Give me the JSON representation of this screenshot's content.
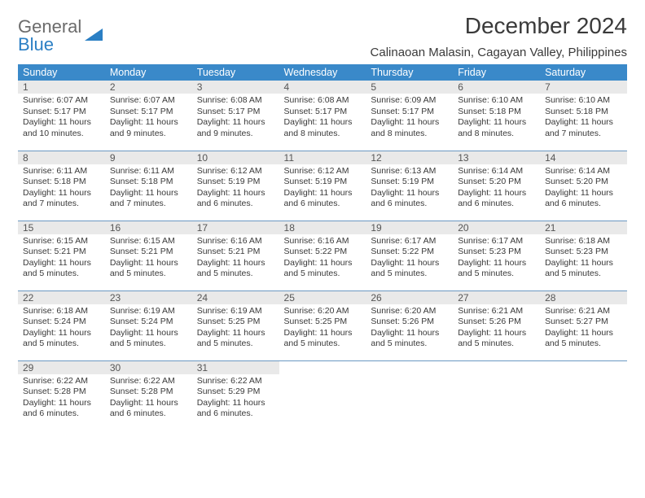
{
  "brand": {
    "line1": "General",
    "line2": "Blue"
  },
  "colors": {
    "header_bg": "#3a89c9",
    "header_fg": "#ffffff",
    "daynum_bg": "#e9e9e9",
    "row_divider": "#6a98c2",
    "text": "#393939",
    "logo_gray": "#6b6b6b",
    "logo_blue": "#2b7fc4"
  },
  "title": "December 2024",
  "location": "Calinaoan Malasin, Cagayan Valley, Philippines",
  "weekdays": [
    "Sunday",
    "Monday",
    "Tuesday",
    "Wednesday",
    "Thursday",
    "Friday",
    "Saturday"
  ],
  "days": [
    {
      "n": 1,
      "sr": "6:07 AM",
      "ss": "5:17 PM",
      "dl": "11 hours and 10 minutes."
    },
    {
      "n": 2,
      "sr": "6:07 AM",
      "ss": "5:17 PM",
      "dl": "11 hours and 9 minutes."
    },
    {
      "n": 3,
      "sr": "6:08 AM",
      "ss": "5:17 PM",
      "dl": "11 hours and 9 minutes."
    },
    {
      "n": 4,
      "sr": "6:08 AM",
      "ss": "5:17 PM",
      "dl": "11 hours and 8 minutes."
    },
    {
      "n": 5,
      "sr": "6:09 AM",
      "ss": "5:17 PM",
      "dl": "11 hours and 8 minutes."
    },
    {
      "n": 6,
      "sr": "6:10 AM",
      "ss": "5:18 PM",
      "dl": "11 hours and 8 minutes."
    },
    {
      "n": 7,
      "sr": "6:10 AM",
      "ss": "5:18 PM",
      "dl": "11 hours and 7 minutes."
    },
    {
      "n": 8,
      "sr": "6:11 AM",
      "ss": "5:18 PM",
      "dl": "11 hours and 7 minutes."
    },
    {
      "n": 9,
      "sr": "6:11 AM",
      "ss": "5:18 PM",
      "dl": "11 hours and 7 minutes."
    },
    {
      "n": 10,
      "sr": "6:12 AM",
      "ss": "5:19 PM",
      "dl": "11 hours and 6 minutes."
    },
    {
      "n": 11,
      "sr": "6:12 AM",
      "ss": "5:19 PM",
      "dl": "11 hours and 6 minutes."
    },
    {
      "n": 12,
      "sr": "6:13 AM",
      "ss": "5:19 PM",
      "dl": "11 hours and 6 minutes."
    },
    {
      "n": 13,
      "sr": "6:14 AM",
      "ss": "5:20 PM",
      "dl": "11 hours and 6 minutes."
    },
    {
      "n": 14,
      "sr": "6:14 AM",
      "ss": "5:20 PM",
      "dl": "11 hours and 6 minutes."
    },
    {
      "n": 15,
      "sr": "6:15 AM",
      "ss": "5:21 PM",
      "dl": "11 hours and 5 minutes."
    },
    {
      "n": 16,
      "sr": "6:15 AM",
      "ss": "5:21 PM",
      "dl": "11 hours and 5 minutes."
    },
    {
      "n": 17,
      "sr": "6:16 AM",
      "ss": "5:21 PM",
      "dl": "11 hours and 5 minutes."
    },
    {
      "n": 18,
      "sr": "6:16 AM",
      "ss": "5:22 PM",
      "dl": "11 hours and 5 minutes."
    },
    {
      "n": 19,
      "sr": "6:17 AM",
      "ss": "5:22 PM",
      "dl": "11 hours and 5 minutes."
    },
    {
      "n": 20,
      "sr": "6:17 AM",
      "ss": "5:23 PM",
      "dl": "11 hours and 5 minutes."
    },
    {
      "n": 21,
      "sr": "6:18 AM",
      "ss": "5:23 PM",
      "dl": "11 hours and 5 minutes."
    },
    {
      "n": 22,
      "sr": "6:18 AM",
      "ss": "5:24 PM",
      "dl": "11 hours and 5 minutes."
    },
    {
      "n": 23,
      "sr": "6:19 AM",
      "ss": "5:24 PM",
      "dl": "11 hours and 5 minutes."
    },
    {
      "n": 24,
      "sr": "6:19 AM",
      "ss": "5:25 PM",
      "dl": "11 hours and 5 minutes."
    },
    {
      "n": 25,
      "sr": "6:20 AM",
      "ss": "5:25 PM",
      "dl": "11 hours and 5 minutes."
    },
    {
      "n": 26,
      "sr": "6:20 AM",
      "ss": "5:26 PM",
      "dl": "11 hours and 5 minutes."
    },
    {
      "n": 27,
      "sr": "6:21 AM",
      "ss": "5:26 PM",
      "dl": "11 hours and 5 minutes."
    },
    {
      "n": 28,
      "sr": "6:21 AM",
      "ss": "5:27 PM",
      "dl": "11 hours and 5 minutes."
    },
    {
      "n": 29,
      "sr": "6:22 AM",
      "ss": "5:28 PM",
      "dl": "11 hours and 6 minutes."
    },
    {
      "n": 30,
      "sr": "6:22 AM",
      "ss": "5:28 PM",
      "dl": "11 hours and 6 minutes."
    },
    {
      "n": 31,
      "sr": "6:22 AM",
      "ss": "5:29 PM",
      "dl": "11 hours and 6 minutes."
    }
  ],
  "labels": {
    "sunrise": "Sunrise:",
    "sunset": "Sunset:",
    "daylight": "Daylight:"
  }
}
